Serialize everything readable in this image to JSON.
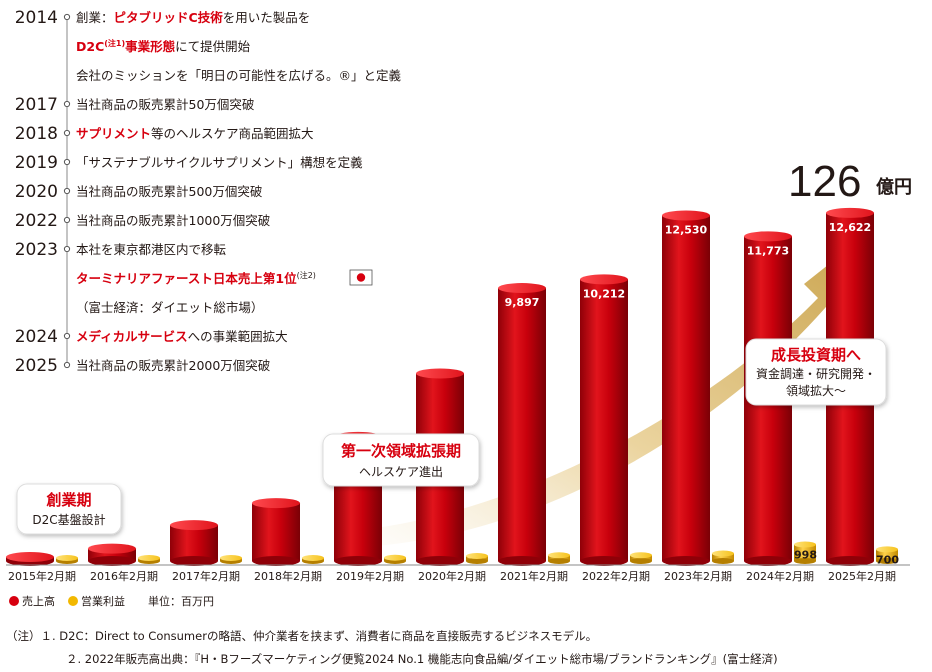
{
  "history": [
    {
      "year": "2014",
      "parts": [
        {
          "t": "創業：",
          "r": false
        },
        {
          "t": "ピタブリッドC技術",
          "r": true
        },
        {
          "t": "を用いた製品を",
          "r": false
        }
      ]
    },
    {
      "year": "",
      "parts": [
        {
          "t": "D2C",
          "r": true
        },
        {
          "t": "(注1)",
          "r": true,
          "sup": true
        },
        {
          "t": "事業形態",
          "r": true
        },
        {
          "t": "にて提供開始",
          "r": false
        }
      ]
    },
    {
      "year": "",
      "parts": [
        {
          "t": "会社のミッションを「明日の可能性を広げる。®」と定義",
          "r": false
        }
      ]
    },
    {
      "year": "2017",
      "parts": [
        {
          "t": "当社商品の販売累計50万個突破",
          "r": false
        }
      ]
    },
    {
      "year": "2018",
      "parts": [
        {
          "t": "サプリメント",
          "r": true
        },
        {
          "t": "等のヘルスケア商品範囲拡大",
          "r": false
        }
      ]
    },
    {
      "year": "2019",
      "parts": [
        {
          "t": "「サステナブルサイクルサプリメント」構想を定義",
          "r": false
        }
      ]
    },
    {
      "year": "2020",
      "parts": [
        {
          "t": "当社商品の販売累計500万個突破",
          "r": false
        }
      ]
    },
    {
      "year": "2022",
      "parts": [
        {
          "t": "当社商品の販売累計1000万個突破",
          "r": false
        }
      ]
    },
    {
      "year": "2023",
      "parts": [
        {
          "t": "本社を東京都港区内で移転",
          "r": false
        }
      ]
    },
    {
      "year": "",
      "parts": [
        {
          "t": "ターミナリアファースト日本売上第1位",
          "r": true
        },
        {
          "t": "(注2)",
          "r": false,
          "sup": true
        }
      ],
      "flag": true
    },
    {
      "year": "",
      "parts": [
        {
          "t": "（富士経済：ダイエット総市場）",
          "r": false
        }
      ]
    },
    {
      "year": "2024",
      "parts": [
        {
          "t": "メディカルサービス",
          "r": true
        },
        {
          "t": "への事業範囲拡大",
          "r": false
        }
      ]
    },
    {
      "year": "2025",
      "parts": [
        {
          "t": "当社商品の販売累計2000万個突破",
          "r": false
        }
      ]
    }
  ],
  "highlight": {
    "value": "126",
    "unit": "億円"
  },
  "phases": [
    {
      "title": "創業期",
      "sub": [
        "D2C基盤設計"
      ]
    },
    {
      "title": "第一次領域拡張期",
      "sub": [
        "ヘルスケア進出"
      ]
    },
    {
      "title": "成長投資期へ",
      "sub": [
        "資金調達・研究開発・",
        "領域拡大～"
      ]
    }
  ],
  "legend": {
    "sales": "売上高",
    "profit": "営業利益",
    "unit": "単位：百万円"
  },
  "notes": [
    "（注）１. D2C：Direct to Consumerの略語、仲介業者を挟まず、消費者に商品を直接販売するビジネスモデル。",
    "２. 2022年販売高出典：『H・Bフーズマーケティング便覧2024 No.1 機能志向食品編/ダイエット総市場/ブランドランキング』(富士経済)"
  ],
  "colors": {
    "sales": "#d7000f",
    "profit": "#f2b800",
    "arrow": "#d8b04a",
    "accent": "#d7000f"
  },
  "chart_data": {
    "type": "bar",
    "categories": [
      "2015年2月期",
      "2016年2月期",
      "2017年2月期",
      "2018年2月期",
      "2019年2月期",
      "2020年2月期",
      "2021年2月期",
      "2022年2月期",
      "2023年2月期",
      "2024年2月期",
      "2025年2月期"
    ],
    "series": [
      {
        "name": "売上高",
        "values": [
          60,
          450,
          1300,
          2100,
          4500,
          6800,
          9897,
          10212,
          12530,
          11773,
          12622
        ],
        "labels": [
          "",
          "",
          "",
          "",
          "",
          "",
          "9,897",
          "10,212",
          "12,530",
          "11,773",
          "12,622"
        ]
      },
      {
        "name": "営業利益",
        "values": [
          20,
          20,
          40,
          60,
          200,
          300,
          350,
          350,
          450,
          998,
          700
        ],
        "labels": [
          "",
          "",
          "",
          "",
          "",
          "",
          "",
          "",
          "",
          "998",
          "700"
        ]
      }
    ],
    "ylabel": "単位：百万円",
    "ylim": [
      0,
      13000
    ]
  }
}
